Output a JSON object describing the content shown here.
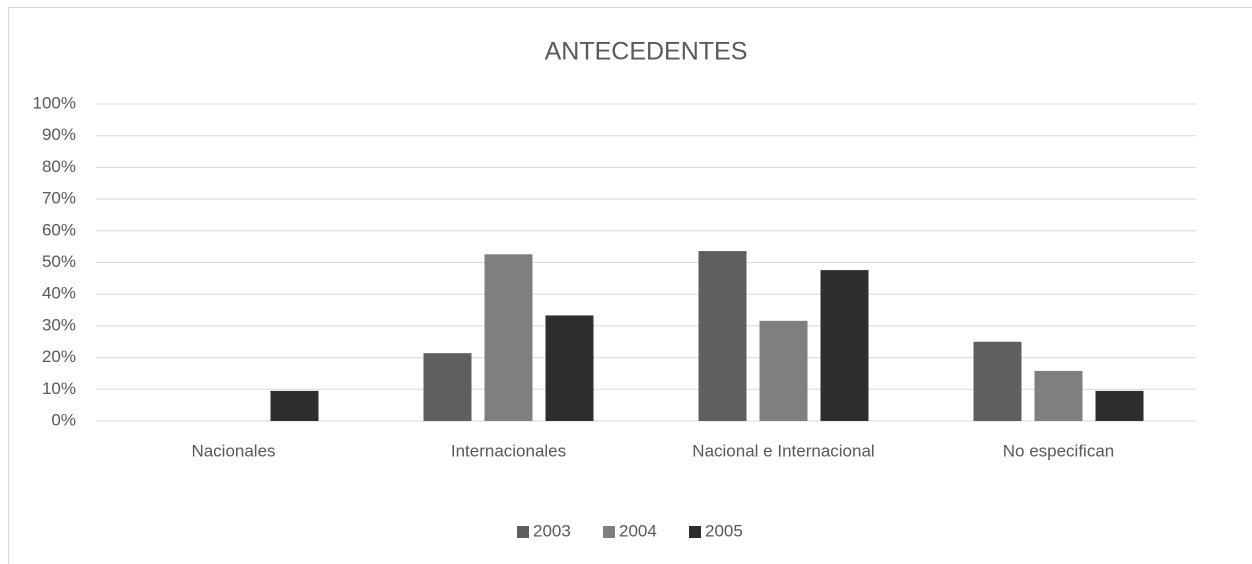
{
  "chart_data": {
    "type": "bar",
    "title": "ANTECEDENTES",
    "categories": [
      "Nacionales",
      "Internacionales",
      "Nacional e Internacional",
      "No especifican"
    ],
    "series": [
      {
        "name": "2003",
        "color": "#5f5f5f",
        "values": [
          0,
          21.4,
          53.6,
          25
        ]
      },
      {
        "name": "2004",
        "color": "#7f7f7f",
        "values": [
          0,
          52.6,
          31.6,
          15.8
        ]
      },
      {
        "name": "2005",
        "color": "#2e2e2e",
        "values": [
          9.5,
          33.3,
          47.6,
          9.5
        ]
      }
    ],
    "ylim": [
      0,
      100
    ],
    "yticks": [
      {
        "value": 0,
        "label": "0%"
      },
      {
        "value": 10,
        "label": "10%"
      },
      {
        "value": 20,
        "label": "20%"
      },
      {
        "value": 30,
        "label": "30%"
      },
      {
        "value": 40,
        "label": "40%"
      },
      {
        "value": 50,
        "label": "50%"
      },
      {
        "value": 60,
        "label": "60%"
      },
      {
        "value": 70,
        "label": "70%"
      },
      {
        "value": 80,
        "label": "80%"
      },
      {
        "value": 90,
        "label": "90%"
      },
      {
        "value": 100,
        "label": "100%"
      }
    ],
    "grid": true,
    "legend": "bottom"
  }
}
